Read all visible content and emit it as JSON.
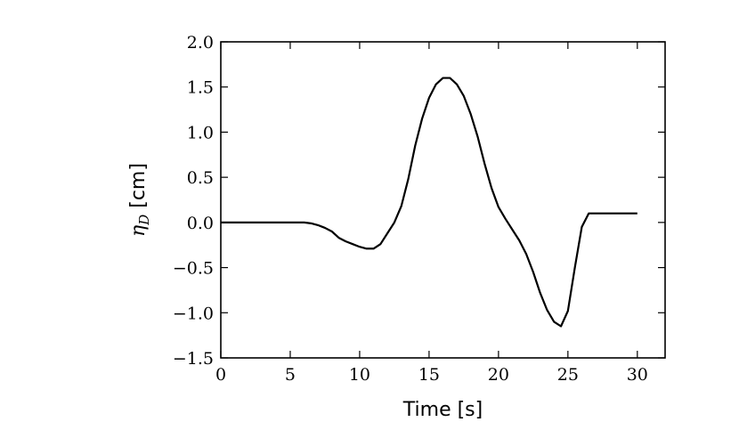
{
  "chart_data": {
    "type": "line",
    "xlabel": "Time [s]",
    "ylabel_main": "η",
    "ylabel_sub": "D",
    "ylabel_unit": " [cm]",
    "xlim": [
      0,
      32
    ],
    "ylim": [
      -1.5,
      2.0
    ],
    "grid": false,
    "x_ticks": [
      0,
      5,
      10,
      15,
      20,
      25,
      30
    ],
    "x_tick_labels": [
      "0",
      "5",
      "10",
      "15",
      "20",
      "25",
      "30"
    ],
    "y_ticks": [
      -1.5,
      -1.0,
      -0.5,
      0.0,
      0.5,
      1.0,
      1.5,
      2.0
    ],
    "y_tick_labels": [
      "−1.5",
      "−1.0",
      "−0.5",
      "0.0",
      "0.5",
      "1.0",
      "1.5",
      "2.0"
    ],
    "series": [
      {
        "color": "#000000",
        "x": [
          0,
          2,
          4,
          5,
          6,
          6.5,
          7,
          7.5,
          8,
          8.5,
          9,
          9.5,
          10,
          10.5,
          11,
          11.5,
          12,
          12.5,
          13,
          13.5,
          14,
          14.5,
          15,
          15.5,
          16,
          16.5,
          17,
          17.5,
          18,
          18.5,
          19,
          19.5,
          20,
          20.5,
          21,
          21.5,
          22,
          22.5,
          23,
          23.5,
          24,
          24.5,
          25,
          25.5,
          26,
          26.5,
          27,
          28,
          29,
          30
        ],
        "y": [
          0.0,
          0.0,
          0.0,
          0.0,
          0.0,
          -0.01,
          -0.03,
          -0.06,
          -0.1,
          -0.17,
          -0.21,
          -0.24,
          -0.27,
          -0.29,
          -0.29,
          -0.24,
          -0.12,
          0.0,
          0.18,
          0.48,
          0.85,
          1.15,
          1.38,
          1.53,
          1.6,
          1.6,
          1.53,
          1.4,
          1.2,
          0.95,
          0.65,
          0.38,
          0.17,
          0.04,
          -0.08,
          -0.2,
          -0.35,
          -0.55,
          -0.78,
          -0.97,
          -1.1,
          -1.15,
          -0.98,
          -0.5,
          -0.05,
          0.1,
          0.1,
          0.1,
          0.1,
          0.1
        ]
      }
    ]
  }
}
